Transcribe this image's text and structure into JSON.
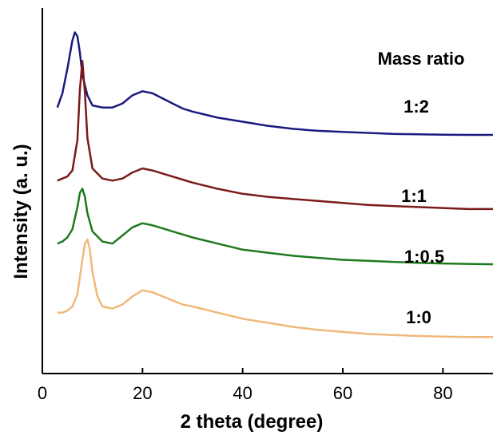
{
  "chart_data": {
    "type": "line",
    "title": "",
    "xlabel": "2 theta (degree)",
    "ylabel": "Intensity (a. u.)",
    "xlim": [
      0,
      90
    ],
    "xticks": [
      0,
      20,
      40,
      60,
      80
    ],
    "yticks_shown": false,
    "grid": false,
    "legend_title": "Mass ratio",
    "series": [
      {
        "name": "1:2",
        "color": "#1a1a80",
        "x": [
          3,
          4,
          5,
          6,
          6.5,
          7,
          7.5,
          8,
          9,
          10,
          12,
          14,
          16,
          18,
          20,
          22,
          24,
          26,
          28,
          30,
          35,
          40,
          45,
          50,
          55,
          60,
          65,
          70,
          75,
          80,
          85,
          90
        ],
        "y": [
          0.51,
          0.58,
          0.7,
          0.84,
          0.88,
          0.86,
          0.78,
          0.67,
          0.57,
          0.52,
          0.51,
          0.51,
          0.53,
          0.57,
          0.59,
          0.58,
          0.555,
          0.53,
          0.505,
          0.49,
          0.46,
          0.44,
          0.42,
          0.405,
          0.395,
          0.39,
          0.385,
          0.38,
          0.378,
          0.376,
          0.375,
          0.375
        ]
      },
      {
        "name": "1:1",
        "color": "#7a1a1a",
        "x": [
          3,
          4,
          5,
          6,
          7,
          7.5,
          8,
          8.5,
          9,
          10,
          12,
          14,
          16,
          18,
          20,
          22,
          24,
          26,
          28,
          30,
          35,
          40,
          45,
          50,
          55,
          60,
          65,
          70,
          75,
          80,
          85,
          90
        ],
        "y": [
          0.15,
          0.16,
          0.17,
          0.2,
          0.35,
          0.6,
          0.74,
          0.58,
          0.36,
          0.21,
          0.16,
          0.15,
          0.16,
          0.19,
          0.21,
          0.2,
          0.185,
          0.17,
          0.155,
          0.14,
          0.11,
          0.085,
          0.07,
          0.06,
          0.05,
          0.04,
          0.03,
          0.025,
          0.02,
          0.015,
          0.01,
          0.01
        ]
      },
      {
        "name": "1:0.5",
        "color": "#1e7a1e",
        "x": [
          3,
          4,
          5,
          6,
          7,
          7.5,
          8,
          8.5,
          9,
          10,
          12,
          14,
          16,
          18,
          20,
          22,
          24,
          26,
          28,
          30,
          35,
          40,
          45,
          50,
          55,
          60,
          65,
          70,
          75,
          80,
          85,
          90
        ],
        "y": [
          -0.16,
          -0.15,
          -0.13,
          -0.09,
          0.02,
          0.09,
          0.11,
          0.07,
          -0.01,
          -0.1,
          -0.15,
          -0.16,
          -0.12,
          -0.08,
          -0.06,
          -0.07,
          -0.085,
          -0.1,
          -0.115,
          -0.13,
          -0.16,
          -0.19,
          -0.205,
          -0.22,
          -0.23,
          -0.24,
          -0.245,
          -0.25,
          -0.255,
          -0.258,
          -0.26,
          -0.262
        ]
      },
      {
        "name": "1:0",
        "color": "#f0b87a",
        "x": [
          3,
          4,
          5,
          6,
          7,
          8,
          8.5,
          9,
          9.5,
          10,
          11,
          12,
          14,
          16,
          18,
          20,
          22,
          24,
          26,
          28,
          30,
          35,
          40,
          45,
          50,
          55,
          60,
          65,
          70,
          75,
          80,
          85,
          90
        ],
        "y": [
          -0.5,
          -0.5,
          -0.49,
          -0.47,
          -0.41,
          -0.24,
          -0.16,
          -0.14,
          -0.19,
          -0.3,
          -0.42,
          -0.47,
          -0.48,
          -0.46,
          -0.42,
          -0.39,
          -0.4,
          -0.42,
          -0.44,
          -0.46,
          -0.47,
          -0.5,
          -0.53,
          -0.55,
          -0.57,
          -0.585,
          -0.595,
          -0.605,
          -0.61,
          -0.615,
          -0.618,
          -0.62,
          -0.62
        ]
      }
    ]
  },
  "text": {
    "legend_title": "Mass ratio",
    "labels": [
      "1:2",
      "1:1",
      "1:0.5",
      "1:0"
    ]
  }
}
